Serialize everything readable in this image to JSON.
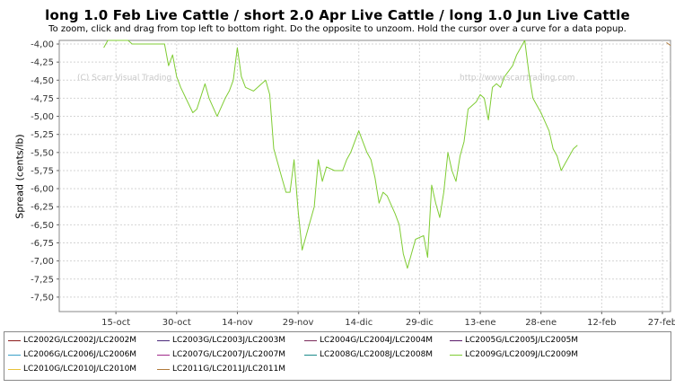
{
  "title": "long 1.0 Feb Live Cattle / short 2.0 Apr Live Cattle / long 1.0 Jun Live Cattle",
  "subtitle": "To zoom, click and drag from top left to bottom right. Do the opposite to unzoom. Hold the cursor over a curve for a data popup.",
  "watermark_left": "(C) Scarr Visual Trading",
  "watermark_right": "http://www.scarrtrading.com",
  "chart_data": {
    "type": "line",
    "ylabel": "Spread (cents/lb)",
    "xlabel": "",
    "ylim": [
      -7.7,
      -3.95
    ],
    "y_ticks": [
      -4.0,
      -4.25,
      -4.5,
      -4.75,
      -5.0,
      -5.25,
      -5.5,
      -5.75,
      -6.0,
      -6.25,
      -6.5,
      -6.75,
      -7.0,
      -7.25,
      -7.5
    ],
    "y_tick_labels": [
      "-4,00",
      "-4,25",
      "-4,50",
      "-4,75",
      "-5,00",
      "-5,25",
      "-5,50",
      "-5,75",
      "-6,00",
      "-6,25",
      "-6,50",
      "-6,75",
      "-7,00",
      "-7,25",
      "-7,50"
    ],
    "x_ticks": [
      15,
      30,
      45,
      60,
      75,
      90,
      105,
      120,
      135,
      150
    ],
    "x_tick_labels": [
      "15-oct",
      "30-oct",
      "14-nov",
      "29-nov",
      "14-dic",
      "29-dic",
      "13-ene",
      "28-ene",
      "12-feb",
      "27-feb"
    ],
    "x_unit": "days from 1-oct",
    "xlim": [
      1,
      152
    ],
    "grid": true,
    "legend_position": "bottom",
    "series": [
      {
        "name": "LC2002G/LC2002J/LC2002M",
        "color": "#8b1a1a",
        "values": []
      },
      {
        "name": "LC2003G/LC2003J/LC2003M",
        "color": "#4b2a7a",
        "values": []
      },
      {
        "name": "LC2004G/LC2004J/LC2004M",
        "color": "#7a2a5a",
        "values": []
      },
      {
        "name": "LC2005G/LC2005J/LC2005M",
        "color": "#5a1a6a",
        "values": []
      },
      {
        "name": "LC2006G/LC2006J/LC2006M",
        "color": "#3aa0c8",
        "values": []
      },
      {
        "name": "LC2007G/LC2007J/LC2007M",
        "color": "#a02a8a",
        "values": []
      },
      {
        "name": "LC2008G/LC2008J/LC2008M",
        "color": "#1a8a8a",
        "values": []
      },
      {
        "name": "LC2009G/LC2009J/LC2009M",
        "color": "#7fcc33",
        "values": [
          [
            12,
            -4.05
          ],
          [
            13,
            -3.95
          ],
          [
            18,
            -3.95
          ],
          [
            19,
            -4.0
          ],
          [
            27,
            -4.0
          ],
          [
            28,
            -4.3
          ],
          [
            29,
            -4.15
          ],
          [
            30,
            -4.45
          ],
          [
            31,
            -4.6
          ],
          [
            34,
            -4.95
          ],
          [
            35,
            -4.9
          ],
          [
            37,
            -4.55
          ],
          [
            38,
            -4.75
          ],
          [
            40,
            -5.0
          ],
          [
            42,
            -4.75
          ],
          [
            43,
            -4.65
          ],
          [
            44,
            -4.5
          ],
          [
            45,
            -4.05
          ],
          [
            46,
            -4.45
          ],
          [
            47,
            -4.6
          ],
          [
            49,
            -4.65
          ],
          [
            51,
            -4.55
          ],
          [
            52,
            -4.5
          ],
          [
            53,
            -4.7
          ],
          [
            54,
            -5.45
          ],
          [
            56,
            -5.85
          ],
          [
            57,
            -6.05
          ],
          [
            58,
            -6.05
          ],
          [
            59,
            -5.6
          ],
          [
            60,
            -6.3
          ],
          [
            61,
            -6.85
          ],
          [
            62,
            -6.65
          ],
          [
            64,
            -6.25
          ],
          [
            65,
            -5.6
          ],
          [
            66,
            -5.9
          ],
          [
            67,
            -5.7
          ],
          [
            69,
            -5.75
          ],
          [
            71,
            -5.75
          ],
          [
            72,
            -5.6
          ],
          [
            73,
            -5.5
          ],
          [
            75,
            -5.2
          ],
          [
            76,
            -5.35
          ],
          [
            77,
            -5.5
          ],
          [
            78,
            -5.6
          ],
          [
            79,
            -5.85
          ],
          [
            80,
            -6.2
          ],
          [
            81,
            -6.05
          ],
          [
            82,
            -6.1
          ],
          [
            84,
            -6.35
          ],
          [
            85,
            -6.5
          ],
          [
            86,
            -6.9
          ],
          [
            87,
            -7.1
          ],
          [
            89,
            -6.7
          ],
          [
            91,
            -6.65
          ],
          [
            92,
            -6.95
          ],
          [
            93,
            -5.95
          ],
          [
            94,
            -6.2
          ],
          [
            95,
            -6.4
          ],
          [
            96,
            -6.05
          ],
          [
            97,
            -5.5
          ],
          [
            98,
            -5.75
          ],
          [
            99,
            -5.9
          ],
          [
            100,
            -5.55
          ],
          [
            101,
            -5.35
          ],
          [
            102,
            -4.9
          ],
          [
            104,
            -4.8
          ],
          [
            105,
            -4.7
          ],
          [
            106,
            -4.75
          ],
          [
            107,
            -5.05
          ],
          [
            108,
            -4.6
          ],
          [
            109,
            -4.55
          ],
          [
            110,
            -4.6
          ],
          [
            111,
            -4.45
          ],
          [
            113,
            -4.3
          ],
          [
            114,
            -4.15
          ],
          [
            115,
            -4.05
          ],
          [
            116,
            -3.95
          ],
          [
            117,
            -4.4
          ],
          [
            118,
            -4.75
          ],
          [
            120,
            -4.95
          ],
          [
            122,
            -5.2
          ],
          [
            123,
            -5.45
          ],
          [
            124,
            -5.55
          ],
          [
            125,
            -5.75
          ],
          [
            126,
            -5.65
          ],
          [
            128,
            -5.45
          ],
          [
            129,
            -5.4
          ]
        ]
      },
      {
        "name": "LC2010G/LC2010J/LC2010M",
        "color": "#e8c23a",
        "values": []
      },
      {
        "name": "LC2011G/LC2011J/LC2011M",
        "color": "#b07a3a",
        "values": [
          [
            151,
            -3.98
          ],
          [
            152,
            -4.02
          ]
        ]
      }
    ]
  }
}
